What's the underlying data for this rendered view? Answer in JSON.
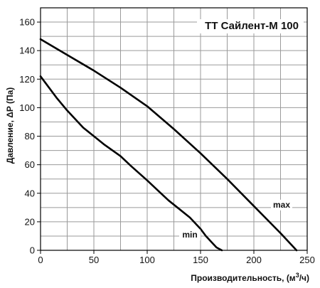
{
  "chart_data": {
    "type": "line",
    "title": "ТТ Сайлент-М 100",
    "xlabel_prefix": "Производительность, (м",
    "xlabel_sup": "3",
    "xlabel_suffix": "/ч)",
    "ylabel": "Давление, ΔP (Па)",
    "xlim": [
      0,
      250
    ],
    "ylim": [
      0,
      170
    ],
    "x_ticks": [
      0,
      50,
      100,
      150,
      200,
      250
    ],
    "y_ticks": [
      0,
      20,
      40,
      60,
      80,
      100,
      120,
      140,
      160
    ],
    "grid": true,
    "series": [
      {
        "name": "max",
        "color": "#000000",
        "x": [
          0,
          25,
          50,
          75,
          100,
          125,
          150,
          175,
          200,
          225,
          240
        ],
        "y": [
          148,
          137,
          126,
          114,
          101,
          85,
          68,
          50,
          31,
          12,
          0
        ]
      },
      {
        "name": "min",
        "color": "#000000",
        "x": [
          0,
          15,
          25,
          40,
          50,
          60,
          75,
          85,
          100,
          110,
          120,
          130,
          140,
          150,
          155,
          160,
          165,
          170
        ],
        "y": [
          122,
          107,
          98,
          86,
          80,
          74,
          66,
          59,
          49,
          42,
          35,
          29,
          23,
          15,
          10,
          6,
          2,
          0
        ]
      }
    ],
    "annotations": [
      {
        "text": "max",
        "x": 226,
        "y": 30
      },
      {
        "text": "min",
        "x": 140,
        "y": 9
      }
    ]
  }
}
